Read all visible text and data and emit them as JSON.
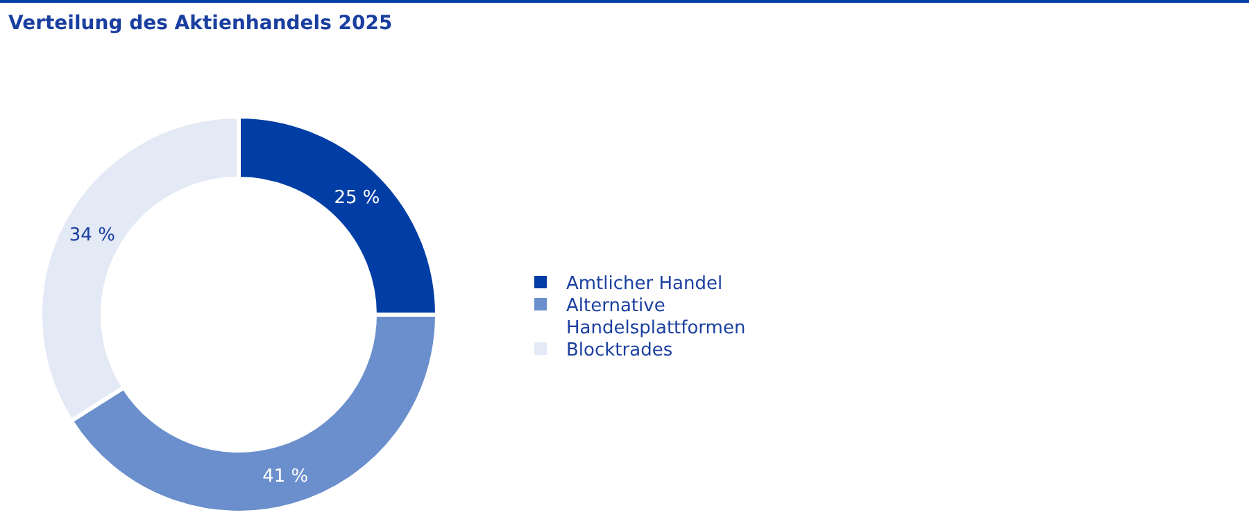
{
  "chart_data": {
    "type": "donut",
    "title": "Verteilung des Aktienhandels 2025",
    "categories": [
      "Amtlicher Handel",
      "Alternative Handelsplattformen",
      "Blocktrades"
    ],
    "values": [
      25,
      41,
      34
    ],
    "colors": [
      "#003da5",
      "#6a8fcc",
      "#e3e9f5"
    ],
    "value_labels": [
      "25 %",
      "41 %",
      "34 %"
    ],
    "legend": "right"
  }
}
